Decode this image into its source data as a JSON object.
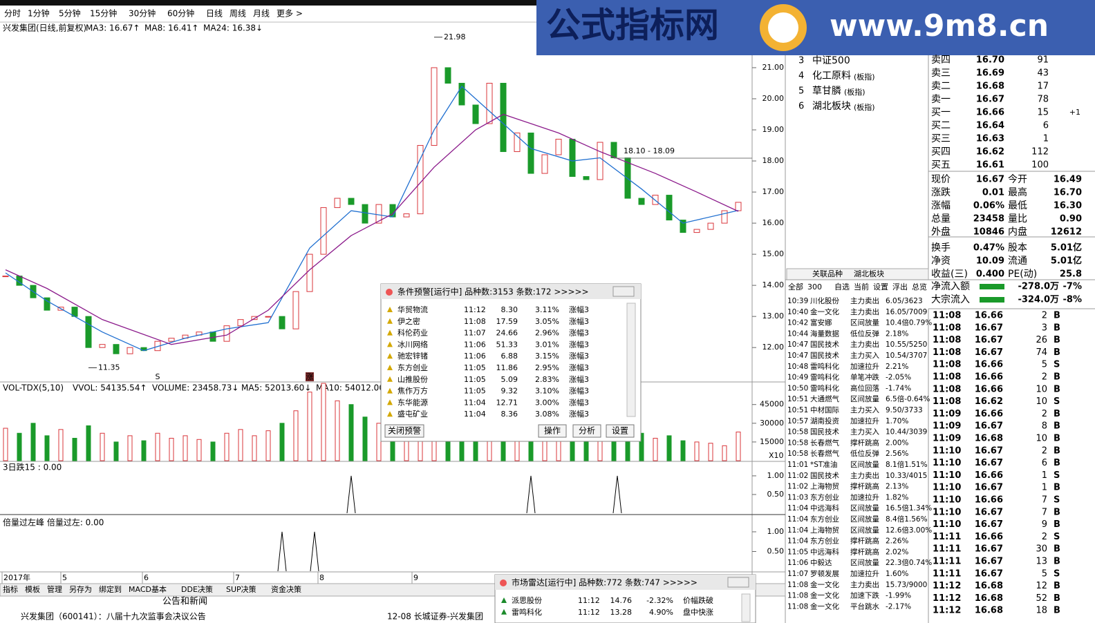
{
  "toolbar": {
    "periods": [
      "分时",
      "1分钟",
      "5分钟",
      "15分钟",
      "30分钟",
      "60分钟",
      "日线",
      "周线",
      "月线",
      "更多 >"
    ],
    "active": 6
  },
  "chart_data": {
    "type": "candle",
    "title": "兴发集团(日线,前复权)",
    "legend": [
      {
        "text": "MA3: 16.67↑",
        "color": "#000000"
      },
      {
        "text": "MA8: 16.41↑",
        "color": "#1f6fd0"
      },
      {
        "text": "MA24: 16.38↓",
        "color": "#8b1a8b"
      }
    ],
    "closes": [
      14.3,
      14.0,
      13.6,
      13.2,
      13.3,
      13.0,
      12.0,
      12.1,
      11.8,
      12.0,
      11.9,
      12.2,
      12.3,
      12.4,
      12.5,
      12.2,
      12.7,
      12.9,
      13.0,
      13.0,
      12.6,
      13.8,
      15.0,
      16.5,
      16.8,
      16.6,
      16.0,
      16.6,
      16.2,
      16.3,
      18.5,
      21.0,
      20.5,
      19.8,
      19.2,
      20.5,
      18.3,
      18.9,
      17.6,
      18.2,
      18.7,
      17.5,
      17.4,
      18.6,
      18.1,
      16.8,
      16.6,
      16.9,
      16.1,
      15.7,
      15.8,
      16.0,
      16.4,
      16.67
    ],
    "up_color": "#d9343a",
    "down_color": "#1a9a2a",
    "series": [
      {
        "color": "#1f6fd0",
        "x": [
          0,
          3,
          7,
          10,
          13,
          16,
          19,
          22,
          25,
          28,
          31,
          33,
          35,
          38,
          41,
          43,
          46,
          49,
          53
        ],
        "values": [
          14.4,
          13.5,
          12.5,
          11.9,
          12.3,
          12.6,
          12.8,
          15.2,
          16.4,
          16.2,
          19.0,
          20.4,
          19.6,
          18.4,
          18.0,
          18.1,
          17.1,
          16.0,
          16.41
        ]
      },
      {
        "color": "#8b1a8b",
        "x": [
          0,
          3,
          7,
          12,
          16,
          19,
          22,
          25,
          28,
          31,
          34,
          36,
          40,
          43,
          47,
          50,
          53
        ],
        "values": [
          14.5,
          13.9,
          12.9,
          12.1,
          12.4,
          13.2,
          14.5,
          15.6,
          16.3,
          17.8,
          19.0,
          19.5,
          18.9,
          18.3,
          17.6,
          17.0,
          16.38
        ]
      }
    ],
    "ylim": [
      10.96,
      22.11
    ],
    "yticks": [
      {
        "value": 21,
        "label": "21.00"
      },
      {
        "value": 20,
        "label": "20.00"
      },
      {
        "value": 19,
        "label": "19.00"
      },
      {
        "value": 18,
        "label": "18.00"
      },
      {
        "value": 17,
        "label": "17.00"
      },
      {
        "value": 16,
        "label": "16.00"
      },
      {
        "value": 15,
        "label": "15.00"
      },
      {
        "value": 14,
        "label": "14.00"
      },
      {
        "value": 13,
        "label": "13.00"
      },
      {
        "value": 12,
        "label": "12.00"
      }
    ],
    "annotations": [
      {
        "text": "21.98",
        "x": 31,
        "value": 21.98
      },
      {
        "text": "11.35",
        "x": 6,
        "value": 11.35
      },
      {
        "text": "18.10 - 18.09",
        "x": 44,
        "value": 18.09
      }
    ],
    "signals": [
      {
        "text": "S",
        "x": 11
      },
      {
        "text": "涨",
        "x": 22
      }
    ],
    "date_labels": [
      "2017年",
      "5",
      "6",
      "7",
      "8",
      "9"
    ],
    "volume": {
      "legend": [
        {
          "text": "VOL-TDX(5,10)",
          "color": "#000000"
        },
        {
          "text": "VVOL: 54135.54↑",
          "color": "#000000"
        },
        {
          "text": "VOLUME: 23458.73↓",
          "color": "#1f6fd0"
        },
        {
          "text": "MA5: 52013.60↓",
          "color": "#1f6fd0"
        },
        {
          "text": "MA10: 54012.00↓",
          "color": "#8b1a8b"
        }
      ],
      "values": [
        26000,
        22000,
        30000,
        20000,
        25000,
        18000,
        28000,
        22000,
        15000,
        20000,
        16000,
        22000,
        18000,
        20000,
        17000,
        15000,
        22000,
        25000,
        20000,
        24000,
        30000,
        40000,
        55000,
        62000,
        48000,
        45000,
        35000,
        30000,
        38000,
        32000,
        42000,
        40000,
        35000,
        30000,
        28000,
        32000,
        30000,
        26000,
        25000,
        28000,
        24000,
        26000,
        22000,
        28000,
        24000,
        20000,
        22000,
        18000,
        20000,
        16000,
        15000,
        14000,
        12000,
        23000
      ],
      "ylim": [
        0,
        62000
      ],
      "yticks": [
        45000,
        30000,
        15000
      ],
      "unit": "X10"
    },
    "indicators": [
      {
        "title": "3日跌15 : 0.00",
        "x": [
          25,
          38,
          44.25
        ],
        "values": [
          1,
          1,
          1
        ],
        "ylim": [
          0,
          1.35
        ],
        "yticks": [
          {
            "value": 1,
            "label": "1.00"
          },
          {
            "value": 0.5,
            "label": "0.50"
          }
        ]
      },
      {
        "title": "倍量过左峰  倍量过左: 0.00",
        "x": [
          20,
          22.35
        ],
        "values": [
          1,
          1
        ],
        "ylim": [
          0,
          1.35
        ],
        "yticks": [
          {
            "value": 1,
            "label": "1.00"
          },
          {
            "value": 0.5,
            "label": "0.50"
          }
        ]
      }
    ]
  },
  "bottom_tabs": [
    "指标",
    "模板",
    "管理",
    "另存为",
    "绑定到",
    "MACD基本",
    "DDE决策",
    "SUP决策",
    "资金决策"
  ],
  "news": {
    "title": "公告和新闻",
    "items": [
      "兴发集团（600141）：八届十九次监事会决议公告",
      "12-08  长城证券-兴发集团"
    ]
  },
  "related": [
    {
      "no": "3",
      "name": "中证500",
      "tag": ""
    },
    {
      "no": "4",
      "name": "化工原料",
      "tag": "(板指)"
    },
    {
      "no": "5",
      "name": "草甘膦",
      "tag": "(板指)"
    },
    {
      "no": "6",
      "name": "湖北板块",
      "tag": "(板指)"
    }
  ],
  "orderbook": [
    [
      "卖四",
      "16.70",
      "91",
      ""
    ],
    [
      "卖三",
      "16.69",
      "43",
      ""
    ],
    [
      "卖二",
      "16.68",
      "17",
      ""
    ],
    [
      "卖一",
      "16.67",
      "78",
      ""
    ],
    [
      "买一",
      "16.66",
      "15",
      "+1"
    ],
    [
      "买二",
      "16.64",
      "6",
      ""
    ],
    [
      "买三",
      "16.63",
      "1",
      ""
    ],
    [
      "买四",
      "16.62",
      "112",
      ""
    ],
    [
      "买五",
      "16.61",
      "100",
      ""
    ]
  ],
  "stats": [
    [
      "现价",
      "16.67",
      "今开",
      "16.49"
    ],
    [
      "涨跌",
      "0.01",
      "最高",
      "16.70"
    ],
    [
      "涨幅",
      "0.06%",
      "最低",
      "16.30"
    ],
    [
      "总量",
      "23458",
      "量比",
      "0.90"
    ],
    [
      "外盘",
      "10846",
      "内盘",
      "12612"
    ],
    [
      "换手",
      "0.47%",
      "股本",
      "5.01亿"
    ],
    [
      "净资",
      "10.09",
      "流通",
      "5.01亿"
    ],
    [
      "收益(三)",
      "0.400",
      "PE(动)",
      "25.8"
    ]
  ],
  "flow": [
    [
      "净流入额",
      "-278.0万",
      "-7%"
    ],
    [
      "大宗流入",
      "-324.0万",
      "-8%"
    ]
  ],
  "panel_tabs": [
    "关联品种",
    "湖北板块"
  ],
  "filters": [
    "全部",
    "300",
    "自选",
    "当前",
    "设置",
    "浮出",
    "总览"
  ],
  "alerts": [
    [
      "10:39",
      "川化股份",
      "主力卖出",
      "6.05/3623",
      "#1a8a2a"
    ],
    [
      "10:40",
      "金一文化",
      "主力卖出",
      "16.05/7009",
      "#1a8a2a"
    ],
    [
      "10:42",
      "富安娜",
      "区间放量",
      "10.4倍0.79%",
      "#d9343a"
    ],
    [
      "10:44",
      "海量数据",
      "低位反弹",
      "2.18%",
      "#d9343a"
    ],
    [
      "10:47",
      "国民技术",
      "主力卖出",
      "10.55/5250",
      "#1a8a2a"
    ],
    [
      "10:47",
      "国民技术",
      "主力买入",
      "10.54/3707",
      "#d9343a"
    ],
    [
      "10:48",
      "雷鸣科化",
      "加速拉升",
      "2.21%",
      "#d9343a"
    ],
    [
      "10:49",
      "雷鸣科化",
      "单笔冲跌",
      "-2.05%",
      "#1a8a2a"
    ],
    [
      "10:50",
      "雷鸣科化",
      "高位回落",
      "-1.74%",
      "#1a8a2a"
    ],
    [
      "10:51",
      "大通燃气",
      "区间放量",
      "6.5倍-0.64%",
      "#1a8a2a"
    ],
    [
      "10:51",
      "中材国际",
      "主力买入",
      "9.50/3733",
      "#d9343a"
    ],
    [
      "10:57",
      "湖南投资",
      "加速拉升",
      "1.70%",
      "#d9343a"
    ],
    [
      "10:58",
      "国民技术",
      "主力买入",
      "10.44/3039",
      "#d9343a"
    ],
    [
      "10:58",
      "长春燃气",
      "撑杆跳高",
      "2.00%",
      "#d9343a"
    ],
    [
      "10:58",
      "长春燃气",
      "低位反弹",
      "2.56%",
      "#d9343a"
    ],
    [
      "11:01",
      "*ST准油",
      "区间放量",
      "8.1倍1.51%",
      "#d9343a"
    ],
    [
      "11:02",
      "国民技术",
      "主力卖出",
      "10.33/4015",
      "#1a8a2a"
    ],
    [
      "11:02",
      "上海物贸",
      "撑杆跳高",
      "2.13%",
      "#d9343a"
    ],
    [
      "11:03",
      "东方创业",
      "加速拉升",
      "1.82%",
      "#d9343a"
    ],
    [
      "11:04",
      "中远海科",
      "区间放量",
      "16.5倍1.34%",
      "#d9343a"
    ],
    [
      "11:04",
      "东方创业",
      "区间放量",
      "8.4倍1.56%",
      "#d9343a"
    ],
    [
      "11:04",
      "上海物贸",
      "区间放量",
      "12.6倍3.00%",
      "#d9343a"
    ],
    [
      "11:04",
      "东方创业",
      "撑杆跳高",
      "2.26%",
      "#d9343a"
    ],
    [
      "11:05",
      "中远海科",
      "撑杆跳高",
      "2.02%",
      "#d9343a"
    ],
    [
      "11:06",
      "中毅达",
      "区间放量",
      "22.3倍0.74%",
      "#d9343a"
    ],
    [
      "11:07",
      "罗顿发展",
      "加速拉升",
      "1.60%",
      "#d9343a"
    ],
    [
      "11:08",
      "金一文化",
      "主力卖出",
      "15.73/9000",
      "#1a8a2a"
    ],
    [
      "11:08",
      "金一文化",
      "加速下跌",
      "-1.99%",
      "#1a8a2a"
    ],
    [
      "11:08",
      "金一文化",
      "平台跳水",
      "-2.17%",
      "#1a8a2a"
    ]
  ],
  "ticks": [
    [
      "11:08",
      "16.66",
      "2",
      "B"
    ],
    [
      "11:08",
      "16.67",
      "3",
      "B"
    ],
    [
      "11:08",
      "16.67",
      "26",
      "B"
    ],
    [
      "11:08",
      "16.67",
      "74",
      "B"
    ],
    [
      "11:08",
      "16.66",
      "5",
      "S"
    ],
    [
      "11:08",
      "16.66",
      "2",
      "B"
    ],
    [
      "11:08",
      "16.66",
      "10",
      "B"
    ],
    [
      "11:08",
      "16.62",
      "10",
      "S"
    ],
    [
      "11:09",
      "16.66",
      "2",
      "B"
    ],
    [
      "11:09",
      "16.67",
      "8",
      "B"
    ],
    [
      "11:09",
      "16.68",
      "10",
      "B"
    ],
    [
      "11:10",
      "16.67",
      "2",
      "B"
    ],
    [
      "11:10",
      "16.67",
      "6",
      "B"
    ],
    [
      "11:10",
      "16.66",
      "1",
      "S"
    ],
    [
      "11:10",
      "16.67",
      "1",
      "B"
    ],
    [
      "11:10",
      "16.66",
      "7",
      "S"
    ],
    [
      "11:10",
      "16.67",
      "7",
      "B"
    ],
    [
      "11:10",
      "16.67",
      "9",
      "B"
    ],
    [
      "11:11",
      "16.66",
      "2",
      "S"
    ],
    [
      "11:11",
      "16.67",
      "30",
      "B"
    ],
    [
      "11:11",
      "16.67",
      "13",
      "B"
    ],
    [
      "11:11",
      "16.67",
      "5",
      "S"
    ],
    [
      "11:12",
      "16.68",
      "12",
      "B"
    ],
    [
      "11:12",
      "16.68",
      "52",
      "B"
    ],
    [
      "11:12",
      "16.68",
      "18",
      "B"
    ]
  ],
  "popup_alert": {
    "title": "条件预警[运行中] 品种数:3153 条数:172 >>>>>",
    "rows": [
      [
        "华贸物流",
        "11:12",
        "8.30",
        "3.11%",
        "涨幅3"
      ],
      [
        "伊之密",
        "11:08",
        "17.59",
        "3.05%",
        "涨幅3"
      ],
      [
        "科伦药业",
        "11:07",
        "24.66",
        "2.96%",
        "涨幅3"
      ],
      [
        "冰川网络",
        "11:06",
        "51.33",
        "3.01%",
        "涨幅3"
      ],
      [
        "驰宏锌锗",
        "11:06",
        "6.88",
        "3.15%",
        "涨幅3"
      ],
      [
        "东方创业",
        "11:05",
        "11.86",
        "2.95%",
        "涨幅3"
      ],
      [
        "山推股份",
        "11:05",
        "5.09",
        "2.83%",
        "涨幅3"
      ],
      [
        "焦作万方",
        "11:05",
        "9.32",
        "3.10%",
        "涨幅3"
      ],
      [
        "东华能源",
        "11:04",
        "12.71",
        "3.00%",
        "涨幅3"
      ],
      [
        "盛屯矿业",
        "11:04",
        "8.36",
        "3.08%",
        "涨幅3"
      ]
    ],
    "buttons": [
      "关闭预警",
      "操作",
      "分析",
      "设置"
    ]
  },
  "popup_radar": {
    "title": "市场雷达[运行中] 品种数:772 条数:747 >>>>>",
    "rows": [
      [
        "派思股份",
        "11:12",
        "14.76",
        "-2.32%",
        "价幅跌破"
      ],
      [
        "雷鸣科化",
        "11:12",
        "13.28",
        "4.90%",
        "盘中快涨"
      ]
    ]
  },
  "banner": {
    "title": "公式指标网",
    "url": "www.9m8.cn"
  }
}
